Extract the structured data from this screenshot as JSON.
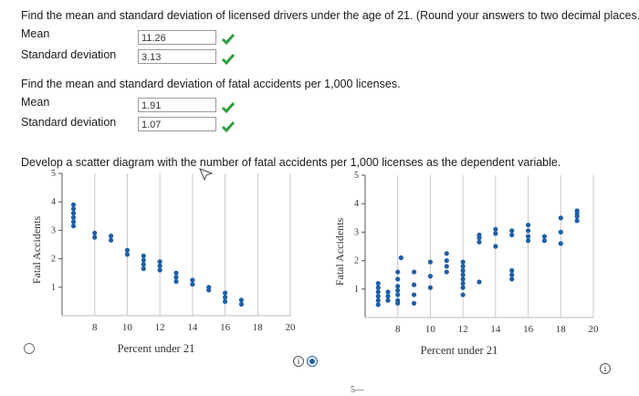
{
  "q1": {
    "prompt": "Find the mean and standard deviation of licensed drivers under the age of 21. (Round your answers to two decimal places.)",
    "mean_label": "Mean",
    "mean_value": "11.26",
    "sd_label": "Standard deviation",
    "sd_value": "3.13"
  },
  "q2": {
    "prompt": "Find the mean and standard deviation of fatal accidents per 1,000 licenses.",
    "mean_label": "Mean",
    "mean_value": "1.91",
    "sd_label": "Standard deviation",
    "sd_value": "1.07"
  },
  "q3": {
    "prompt": "Develop a scatter diagram with the number of fatal accidents per 1,000 licenses as the dependent variable."
  },
  "icons": {
    "check": "check-icon",
    "info": "info-icon",
    "cursor": "cursor-arrow-icon"
  },
  "colors": {
    "point": "#1f5fa8",
    "check": "#2e9e3e"
  },
  "bottom_tick": "5",
  "chart_data": [
    {
      "type": "scatter",
      "xlabel": "Percent under 21",
      "ylabel": "Fatal Accidents",
      "xticks": [
        "8",
        "10",
        "12",
        "14",
        "16",
        "18",
        "20"
      ],
      "yticks": [
        "1",
        "2",
        "3",
        "4",
        "5"
      ],
      "xlim": [
        6,
        20
      ],
      "ylim": [
        0,
        5
      ],
      "points": [
        [
          6.7,
          3.9
        ],
        [
          6.7,
          3.75
        ],
        [
          6.7,
          3.6
        ],
        [
          6.7,
          3.45
        ],
        [
          6.7,
          3.3
        ],
        [
          6.7,
          3.15
        ],
        [
          8,
          2.9
        ],
        [
          8,
          2.75
        ],
        [
          9,
          2.8
        ],
        [
          9,
          2.65
        ],
        [
          10,
          2.3
        ],
        [
          10,
          2.15
        ],
        [
          11,
          2.1
        ],
        [
          11,
          1.95
        ],
        [
          11,
          1.8
        ],
        [
          11,
          1.65
        ],
        [
          12,
          1.9
        ],
        [
          12,
          1.75
        ],
        [
          12,
          1.6
        ],
        [
          13,
          1.5
        ],
        [
          13,
          1.35
        ],
        [
          13,
          1.2
        ],
        [
          14,
          1.25
        ],
        [
          14,
          1.1
        ],
        [
          15,
          1.0
        ],
        [
          15,
          0.9
        ],
        [
          16,
          0.8
        ],
        [
          16,
          0.65
        ],
        [
          16,
          0.5
        ],
        [
          17,
          0.55
        ],
        [
          17,
          0.4
        ]
      ]
    },
    {
      "type": "scatter",
      "xlabel": "Percent under 21",
      "ylabel": "Fatal Accidents",
      "xticks": [
        "8",
        "10",
        "12",
        "14",
        "16",
        "18",
        "20"
      ],
      "yticks": [
        "1",
        "2",
        "3",
        "4",
        "5"
      ],
      "xlim": [
        6,
        20
      ],
      "ylim": [
        0,
        5
      ],
      "points": [
        [
          6.8,
          1.2
        ],
        [
          6.8,
          1.05
        ],
        [
          6.8,
          0.9
        ],
        [
          6.8,
          0.75
        ],
        [
          6.8,
          0.6
        ],
        [
          6.8,
          0.45
        ],
        [
          7.4,
          0.9
        ],
        [
          7.4,
          0.75
        ],
        [
          7.4,
          0.6
        ],
        [
          8,
          1.6
        ],
        [
          8,
          1.35
        ],
        [
          8,
          1.1
        ],
        [
          8,
          0.95
        ],
        [
          8,
          0.8
        ],
        [
          8,
          0.6
        ],
        [
          8,
          0.5
        ],
        [
          8.2,
          2.1
        ],
        [
          9,
          1.6
        ],
        [
          9,
          1.15
        ],
        [
          9,
          0.8
        ],
        [
          9,
          0.5
        ],
        [
          10,
          1.95
        ],
        [
          10,
          1.45
        ],
        [
          10,
          1.05
        ],
        [
          11,
          2.25
        ],
        [
          11,
          2.0
        ],
        [
          11,
          1.8
        ],
        [
          11,
          1.6
        ],
        [
          12,
          1.95
        ],
        [
          12,
          1.8
        ],
        [
          12,
          1.65
        ],
        [
          12,
          1.5
        ],
        [
          12,
          1.35
        ],
        [
          12,
          1.2
        ],
        [
          12,
          1.05
        ],
        [
          12,
          0.8
        ],
        [
          13,
          2.9
        ],
        [
          13,
          2.8
        ],
        [
          13,
          2.65
        ],
        [
          13,
          1.25
        ],
        [
          14,
          3.1
        ],
        [
          14,
          2.95
        ],
        [
          14,
          2.5
        ],
        [
          15,
          3.05
        ],
        [
          15,
          2.9
        ],
        [
          15,
          1.65
        ],
        [
          15,
          1.5
        ],
        [
          15,
          1.35
        ],
        [
          16,
          3.25
        ],
        [
          16,
          3.05
        ],
        [
          16,
          2.85
        ],
        [
          16,
          2.7
        ],
        [
          17,
          2.85
        ],
        [
          17,
          2.7
        ],
        [
          18,
          3.5
        ],
        [
          18,
          3.0
        ],
        [
          18,
          2.6
        ],
        [
          19,
          3.75
        ],
        [
          19,
          3.65
        ],
        [
          19,
          3.55
        ],
        [
          19,
          3.4
        ]
      ]
    }
  ]
}
